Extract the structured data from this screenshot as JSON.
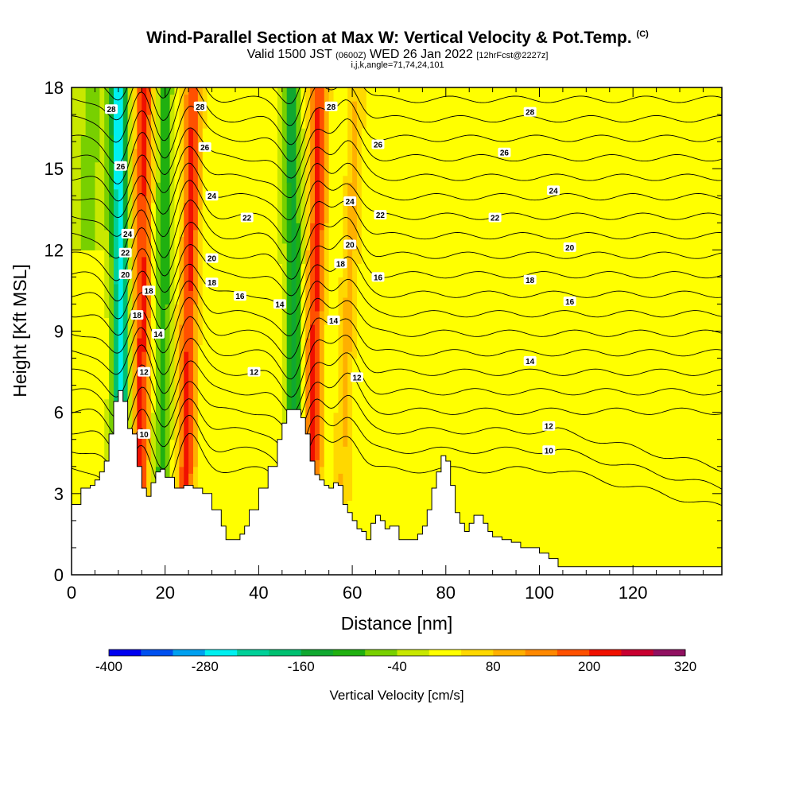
{
  "title": {
    "main": "Wind-Parallel Section at Max W: Vertical Velocity & Pot.Temp.",
    "main_tag": "(C)",
    "valid_prefix": "Valid 1500 JST",
    "valid_utc": "(0600Z)",
    "valid_date": "WED 26 Jan 2022",
    "forecast": "[12hrFcst@2227z]",
    "indices": "i,j,k,angle=71,74,24,101"
  },
  "chart_data": {
    "type": "heatmap",
    "xlabel": "Distance [nm]",
    "ylabel": "Height [Kft MSL]",
    "xlim": [
      0,
      139
    ],
    "ylim": [
      0,
      18
    ],
    "x_ticks": [
      "0",
      "20",
      "40",
      "60",
      "80",
      "100",
      "120"
    ],
    "y_ticks": [
      "0",
      "3",
      "6",
      "9",
      "12",
      "15",
      "18"
    ],
    "colorbar": {
      "label": "Vertical Velocity [cm/s]",
      "tick_labels": [
        "-400",
        "-280",
        "-160",
        "-40",
        "80",
        "200",
        "320"
      ],
      "boundaries": [
        -400,
        -360,
        -320,
        -280,
        -240,
        -200,
        -160,
        -120,
        -80,
        -40,
        0,
        40,
        80,
        120,
        160,
        200,
        240,
        280,
        320
      ],
      "colors": [
        "#0000f0",
        "#0050f0",
        "#00a0f0",
        "#00f0f0",
        "#00d098",
        "#00c070",
        "#10a830",
        "#20b010",
        "#78d000",
        "#c8e800",
        "#ffff00",
        "#ffd800",
        "#ffb000",
        "#ff8800",
        "#ff5000",
        "#f01000",
        "#c80030",
        "#901060"
      ]
    },
    "terrain_kft": [
      [
        0,
        2.6
      ],
      [
        2,
        3.2
      ],
      [
        4,
        3.3
      ],
      [
        5,
        3.5
      ],
      [
        6,
        3.8
      ],
      [
        7,
        4.2
      ],
      [
        8,
        5.2
      ],
      [
        9,
        6.4
      ],
      [
        10,
        6.8
      ],
      [
        11,
        6.4
      ],
      [
        12,
        5.4
      ],
      [
        13,
        5.2
      ],
      [
        14,
        4.0
      ],
      [
        15,
        3.2
      ],
      [
        16,
        2.9
      ],
      [
        17,
        3.4
      ],
      [
        18,
        3.8
      ],
      [
        19,
        3.9
      ],
      [
        20,
        3.6
      ],
      [
        22,
        3.2
      ],
      [
        24,
        3.3
      ],
      [
        25,
        3.3
      ],
      [
        26,
        3.2
      ],
      [
        28,
        3.0
      ],
      [
        30,
        2.4
      ],
      [
        32,
        1.8
      ],
      [
        33,
        1.3
      ],
      [
        35,
        1.3
      ],
      [
        36,
        1.5
      ],
      [
        37,
        1.8
      ],
      [
        38,
        2.4
      ],
      [
        40,
        3.2
      ],
      [
        42,
        4.0
      ],
      [
        44,
        5.0
      ],
      [
        45,
        5.6
      ],
      [
        46,
        6.1
      ],
      [
        48,
        6.1
      ],
      [
        49,
        5.8
      ],
      [
        50,
        5.2
      ],
      [
        51,
        4.2
      ],
      [
        52,
        3.7
      ],
      [
        53,
        3.5
      ],
      [
        54,
        3.3
      ],
      [
        55,
        3.2
      ],
      [
        56,
        3.4
      ],
      [
        57,
        3.3
      ],
      [
        58,
        2.6
      ],
      [
        59,
        2.3
      ],
      [
        60,
        2.0
      ],
      [
        61,
        1.7
      ],
      [
        62,
        1.6
      ],
      [
        63,
        1.3
      ],
      [
        64,
        1.9
      ],
      [
        65,
        2.2
      ],
      [
        66,
        2.0
      ],
      [
        67,
        1.7
      ],
      [
        68,
        1.8
      ],
      [
        70,
        1.3
      ],
      [
        72,
        1.3
      ],
      [
        74,
        1.5
      ],
      [
        75,
        1.8
      ],
      [
        76,
        2.4
      ],
      [
        77,
        3.2
      ],
      [
        78,
        3.8
      ],
      [
        79,
        4.4
      ],
      [
        80,
        4.2
      ],
      [
        81,
        3.3
      ],
      [
        82,
        2.3
      ],
      [
        83,
        1.9
      ],
      [
        84,
        1.6
      ],
      [
        85,
        1.9
      ],
      [
        86,
        2.2
      ],
      [
        87,
        2.2
      ],
      [
        88,
        1.9
      ],
      [
        89,
        1.6
      ],
      [
        90,
        1.4
      ],
      [
        92,
        1.3
      ],
      [
        94,
        1.2
      ],
      [
        96,
        1.0
      ],
      [
        98,
        1.0
      ],
      [
        100,
        0.8
      ],
      [
        102,
        0.6
      ],
      [
        104,
        0.3
      ],
      [
        106,
        0.3
      ],
      [
        139,
        0.3
      ]
    ],
    "updrafts": [
      {
        "x_base": 14.5,
        "x_top": 15.5,
        "w": 200
      },
      {
        "x_base": 24,
        "x_top": 26,
        "w": 200
      },
      {
        "x_base": 51,
        "x_top": 53,
        "w": 200
      },
      {
        "x_base": 57,
        "x_top": 61,
        "w": 80
      }
    ],
    "downdrafts": [
      {
        "x_base": 11,
        "x_top": 10,
        "w": -280
      },
      {
        "x_base": 19,
        "x_top": 20,
        "w": -120
      },
      {
        "x_base": 48,
        "x_top": 47,
        "w": -160
      }
    ],
    "theta_contour_labels": [
      "10",
      "12",
      "14",
      "16",
      "18",
      "20",
      "22",
      "24",
      "26",
      "28"
    ],
    "theta_labels": [
      {
        "text": "10",
        "x": 15.5,
        "y": 5.2
      },
      {
        "text": "12",
        "x": 15.5,
        "y": 7.5
      },
      {
        "text": "14",
        "x": 18.5,
        "y": 8.9
      },
      {
        "text": "18",
        "x": 14.0,
        "y": 9.6
      },
      {
        "text": "18",
        "x": 16.5,
        "y": 10.5
      },
      {
        "text": "20",
        "x": 11.5,
        "y": 11.1
      },
      {
        "text": "22",
        "x": 11.5,
        "y": 11.9
      },
      {
        "text": "24",
        "x": 12.0,
        "y": 12.6
      },
      {
        "text": "26",
        "x": 10.5,
        "y": 15.1
      },
      {
        "text": "28",
        "x": 8.5,
        "y": 17.2
      },
      {
        "text": "28",
        "x": 27.5,
        "y": 17.3
      },
      {
        "text": "26",
        "x": 28.5,
        "y": 15.8
      },
      {
        "text": "24",
        "x": 30.0,
        "y": 14.0
      },
      {
        "text": "22",
        "x": 37.5,
        "y": 13.2
      },
      {
        "text": "20",
        "x": 30.0,
        "y": 11.7
      },
      {
        "text": "18",
        "x": 30.0,
        "y": 10.8
      },
      {
        "text": "16",
        "x": 36.0,
        "y": 10.3
      },
      {
        "text": "14",
        "x": 44.5,
        "y": 10.0
      },
      {
        "text": "12",
        "x": 39.0,
        "y": 7.5
      },
      {
        "text": "28",
        "x": 55.5,
        "y": 17.3
      },
      {
        "text": "24",
        "x": 59.5,
        "y": 13.8
      },
      {
        "text": "20",
        "x": 59.5,
        "y": 12.2
      },
      {
        "text": "18",
        "x": 57.5,
        "y": 11.5
      },
      {
        "text": "14",
        "x": 56.0,
        "y": 9.4
      },
      {
        "text": "12",
        "x": 61.0,
        "y": 7.3
      },
      {
        "text": "26",
        "x": 65.5,
        "y": 15.9
      },
      {
        "text": "22",
        "x": 66.0,
        "y": 13.3
      },
      {
        "text": "16",
        "x": 65.5,
        "y": 11.0
      },
      {
        "text": "28",
        "x": 98.0,
        "y": 17.1
      },
      {
        "text": "26",
        "x": 92.5,
        "y": 15.6
      },
      {
        "text": "24",
        "x": 103.0,
        "y": 14.2
      },
      {
        "text": "22",
        "x": 90.5,
        "y": 13.2
      },
      {
        "text": "20",
        "x": 106.5,
        "y": 12.1
      },
      {
        "text": "18",
        "x": 98.0,
        "y": 10.9
      },
      {
        "text": "16",
        "x": 106.5,
        "y": 10.1
      },
      {
        "text": "14",
        "x": 98.0,
        "y": 7.9
      },
      {
        "text": "12",
        "x": 102.0,
        "y": 5.5
      },
      {
        "text": "10",
        "x": 102.0,
        "y": 4.6
      }
    ]
  }
}
